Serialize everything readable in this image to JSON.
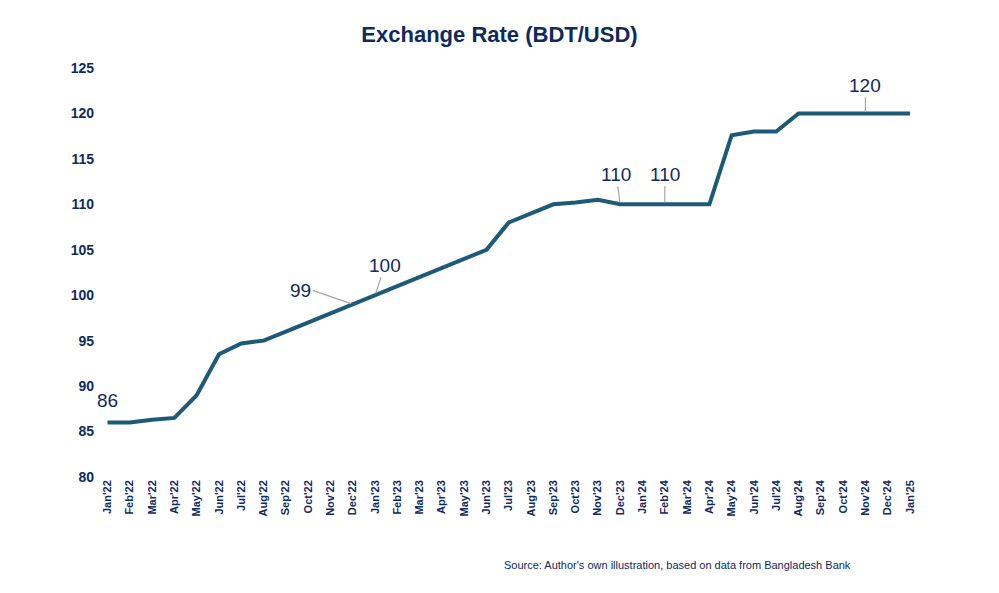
{
  "chart_data": {
    "type": "line",
    "title": "Exchange Rate (BDT/USD)",
    "categories": [
      "Jan'22",
      "Feb'22",
      "Mar'22",
      "Apr'22",
      "May'22",
      "Jun'22",
      "Jul'22",
      "Aug'22",
      "Sep'22",
      "Oct'22",
      "Nov'22",
      "Dec'22",
      "Jan'23",
      "Feb'23",
      "Mar'23",
      "Apr'23",
      "May'23",
      "Jun'23",
      "Jul'23",
      "Aug'23",
      "Sep'23",
      "Oct'23",
      "Nov'23",
      "Dec'23",
      "Jan'24",
      "Feb'24",
      "Mar'24",
      "Apr'24",
      "May'24",
      "Jun'24",
      "Jul'24",
      "Aug'24",
      "Sep'24",
      "Oct'24",
      "Nov'24",
      "Dec'24",
      "Jan'25"
    ],
    "values": [
      86,
      86,
      86.3,
      86.5,
      89,
      93.5,
      94.7,
      95,
      96,
      97,
      98,
      99,
      100,
      101,
      102,
      103,
      104,
      105,
      108,
      109,
      110,
      110.2,
      110.5,
      110,
      110,
      110,
      110,
      110,
      117.6,
      118,
      118,
      120,
      120,
      120,
      120,
      120,
      120
    ],
    "color": "#1c5a78",
    "ylim": [
      80,
      125
    ],
    "yticks": [
      80,
      85,
      90,
      95,
      100,
      105,
      110,
      115,
      120,
      125
    ],
    "grid": false,
    "annotations": [
      {
        "text": "86",
        "x": "Jan'22",
        "y": 86
      },
      {
        "text": "99",
        "x": "Dec'22",
        "y": 99
      },
      {
        "text": "100",
        "x": "Jan'23",
        "y": 100
      },
      {
        "text": "110",
        "x": "Dec'23",
        "y": 110
      },
      {
        "text": "110",
        "x": "Feb'24",
        "y": 110
      },
      {
        "text": "120",
        "x": "Nov'24",
        "y": 120
      }
    ],
    "source": "Source: Author's own illustration, based on data from Bangladesh Bank"
  }
}
